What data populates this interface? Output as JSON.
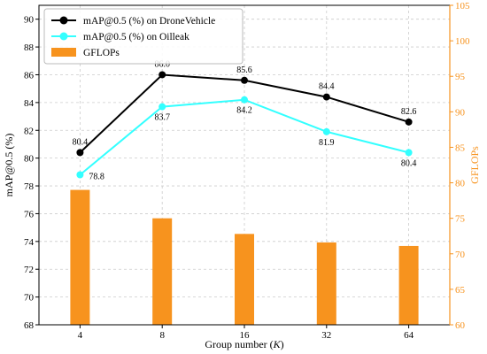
{
  "chart_data": {
    "type": "bar-line-combo",
    "xlabel": "Group number (K)",
    "xlabel_prefix": "Group number (",
    "xlabel_var": "K",
    "xlabel_suffix": ")",
    "ylabel_left": "mAP@0.5 (%)",
    "ylabel_right": "GFLOPs",
    "categories": [
      "4",
      "8",
      "16",
      "32",
      "64"
    ],
    "ylim_left": [
      68,
      91
    ],
    "yticks_left": [
      "68",
      "70",
      "72",
      "74",
      "76",
      "78",
      "80",
      "82",
      "84",
      "86",
      "88",
      "90"
    ],
    "ylim_right": [
      60,
      105
    ],
    "yticks_right": [
      "60",
      "65",
      "70",
      "75",
      "80",
      "85",
      "90",
      "95",
      "100",
      "105"
    ],
    "grid": true,
    "legend_position": "top-left",
    "series": [
      {
        "name": "mAP@0.5 (%) on DroneVehicle",
        "kind": "line",
        "axis": "left",
        "color": "#000000",
        "values": [
          80.4,
          86.0,
          85.6,
          84.4,
          82.6
        ],
        "labels": [
          "80.4",
          "86.0",
          "85.6",
          "84.4",
          "82.6"
        ]
      },
      {
        "name": "mAP@0.5 (%) on Oilleak",
        "kind": "line",
        "axis": "left",
        "color": "#33ffff",
        "values": [
          78.8,
          83.7,
          84.2,
          81.9,
          80.4
        ],
        "labels": [
          "78.8",
          "83.7",
          "84.2",
          "81.9",
          "80.4"
        ]
      },
      {
        "name": "GFLOPs",
        "kind": "bar",
        "axis": "right",
        "color": "#f7931e",
        "values": [
          79.0,
          75.0,
          72.8,
          71.6,
          71.1
        ]
      }
    ],
    "colors": {
      "right_axis": "#f7931e",
      "grid": "#cccccc"
    }
  }
}
